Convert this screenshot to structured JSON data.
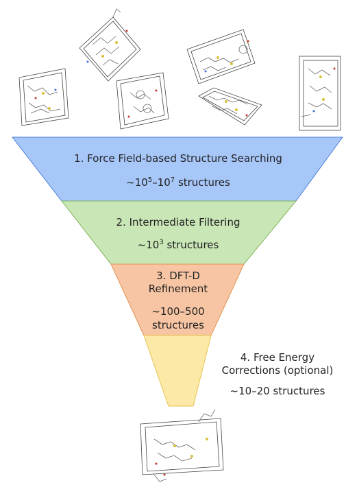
{
  "stages": [
    {
      "title": "1. Force Field-based Structure Searching",
      "count_prefix": "~10",
      "exp1": "5",
      "mid": "–10",
      "exp2": "7",
      "count_suffix": " structures",
      "color": "#a7c7f9",
      "border": "#4e7fd6"
    },
    {
      "title": "2. Intermediate Filtering",
      "count_prefix": "~10",
      "exp1": "3",
      "count_suffix": " structures",
      "color": "#c9e6b6",
      "border": "#7fb25a"
    },
    {
      "title_line1": "3. DFT-D",
      "title_line2": "Refinement",
      "count_line1": "~100–500",
      "count_line2": "structures",
      "color": "#f7c5a3",
      "border": "#e19250"
    },
    {
      "title_line1": "4. Free Energy",
      "title_line2": "Corrections (optional)",
      "count": "~10–20 structures",
      "color": "#fde9a7",
      "border": "#e6c24d"
    }
  ],
  "crystal_images": [
    "top-left-crystal",
    "top-left-center-crystal",
    "top-center-crystal",
    "top-center-right-crystal",
    "top-right-upper-crystal",
    "top-right-crystal",
    "bottom-crystal"
  ]
}
